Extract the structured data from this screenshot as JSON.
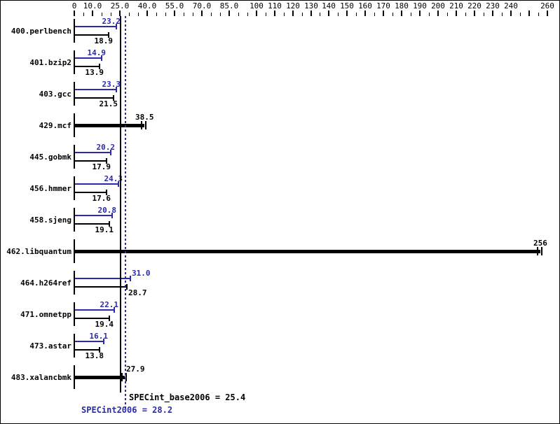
{
  "chart_data": {
    "type": "bar",
    "title": "",
    "orientation": "horizontal",
    "xlabel": "",
    "ylabel": "",
    "xlim": [
      0,
      260
    ],
    "grid": false,
    "colors": {
      "peak": "#2a2aae",
      "base": "#000000",
      "background": "#ffffff"
    },
    "axis": {
      "tick_step": 5,
      "major_unlabeled": [
        250
      ],
      "labels": [
        {
          "v": 0,
          "t": "0"
        },
        {
          "v": 10,
          "t": "10.0"
        },
        {
          "v": 25,
          "t": "25.0"
        },
        {
          "v": 40,
          "t": "40.0"
        },
        {
          "v": 55,
          "t": "55.0"
        },
        {
          "v": 70,
          "t": "70.0"
        },
        {
          "v": 85,
          "t": "85.0"
        },
        {
          "v": 100,
          "t": "100"
        },
        {
          "v": 110,
          "t": "110"
        },
        {
          "v": 120,
          "t": "120"
        },
        {
          "v": 130,
          "t": "130"
        },
        {
          "v": 140,
          "t": "140"
        },
        {
          "v": 150,
          "t": "150"
        },
        {
          "v": 160,
          "t": "160"
        },
        {
          "v": 170,
          "t": "170"
        },
        {
          "v": 180,
          "t": "180"
        },
        {
          "v": 190,
          "t": "190"
        },
        {
          "v": 200,
          "t": "200"
        },
        {
          "v": 210,
          "t": "210"
        },
        {
          "v": 220,
          "t": "220"
        },
        {
          "v": 230,
          "t": "230"
        },
        {
          "v": 240,
          "t": "240"
        },
        {
          "v": 260,
          "t": "260"
        }
      ]
    },
    "series_legend": [
      "SPECint2006 (peak, blue)",
      "SPECint_base2006 (base, black)"
    ],
    "benchmarks": [
      {
        "name": "400.perlbench",
        "peak": 23.2,
        "peak_label": "23.2",
        "base": 18.9,
        "base_label": "18.9"
      },
      {
        "name": "401.bzip2",
        "peak": 14.9,
        "peak_label": "14.9",
        "base": 13.9,
        "base_label": "13.9"
      },
      {
        "name": "403.gcc",
        "peak": 23.3,
        "peak_label": "23.3",
        "base": 21.5,
        "base_label": "21.5"
      },
      {
        "name": "429.mcf",
        "merged": true,
        "value": 38.5,
        "value_label": "38.5"
      },
      {
        "name": "445.gobmk",
        "peak": 20.2,
        "peak_label": "20.2",
        "base": 17.9,
        "base_label": "17.9"
      },
      {
        "name": "456.hmmer",
        "peak": 24.3,
        "peak_label": "24.3",
        "base": 17.6,
        "base_label": "17.6"
      },
      {
        "name": "458.sjeng",
        "peak": 20.8,
        "peak_label": "20.8",
        "base": 19.1,
        "base_label": "19.1"
      },
      {
        "name": "462.libquantum",
        "merged": true,
        "value": 256,
        "value_label": "256"
      },
      {
        "name": "464.h264ref",
        "peak": 31.0,
        "peak_label": "31.0",
        "base": 28.7,
        "base_label": "28.7"
      },
      {
        "name": "471.omnetpp",
        "peak": 22.1,
        "peak_label": "22.1",
        "base": 19.4,
        "base_label": "19.4"
      },
      {
        "name": "473.astar",
        "peak": 16.1,
        "peak_label": "16.1",
        "base": 13.8,
        "base_label": "13.8"
      },
      {
        "name": "483.xalancbmk",
        "merged": true,
        "value": 27.9,
        "value_label": "27.9"
      }
    ],
    "summary": {
      "base_value": 25.4,
      "base_label": "SPECint_base2006 = 25.4",
      "peak_value": 28.2,
      "peak_label": "SPECint2006 = 28.2"
    }
  }
}
